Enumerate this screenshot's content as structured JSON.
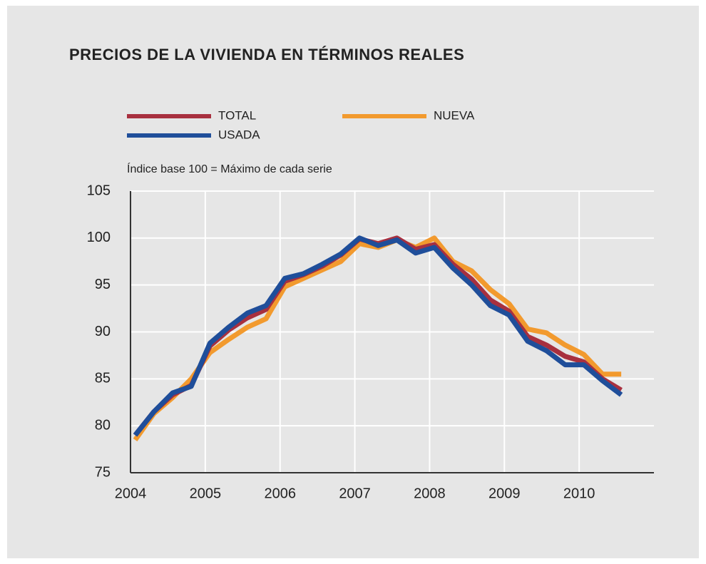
{
  "chart_data": {
    "type": "line",
    "title": "PRECIOS DE LA VIVIENDA EN TÉRMINOS REALES",
    "subtitle": "Índice base 100 = Máximo de cada serie",
    "x": [
      2004.0625,
      2004.3125,
      2004.5625,
      2004.8125,
      2005.0625,
      2005.3125,
      2005.5625,
      2005.8125,
      2006.0625,
      2006.3125,
      2006.5625,
      2006.8125,
      2007.0625,
      2007.3125,
      2007.5625,
      2007.8125,
      2008.0625,
      2008.3125,
      2008.5625,
      2008.8125,
      2009.0625,
      2009.3125,
      2009.5625,
      2009.8125,
      2010.0625,
      2010.3125,
      2010.5625
    ],
    "series": [
      {
        "name": "NUEVA",
        "color": "#f29a2e",
        "values": [
          78.5,
          81.3,
          83,
          85,
          87.8,
          89.2,
          90.5,
          91.4,
          94.8,
          95.7,
          96.6,
          97.5,
          99.4,
          99,
          99.8,
          99,
          100,
          97.5,
          96.5,
          94.5,
          93,
          90.3,
          89.9,
          88.6,
          87.6,
          85.5,
          85.5
        ]
      },
      {
        "name": "TOTAL",
        "color": "#a8303f",
        "values": [
          79,
          81.5,
          83.3,
          84.3,
          88.5,
          90.2,
          91.5,
          92.4,
          95.4,
          96.1,
          97,
          98.2,
          99.9,
          99.4,
          100,
          98.8,
          99.3,
          97.2,
          95.6,
          93.4,
          92.2,
          89.5,
          88.6,
          87.4,
          86.8,
          85,
          83.8
        ]
      },
      {
        "name": "USADA",
        "color": "#1f4e9a",
        "values": [
          79,
          81.5,
          83.5,
          84.2,
          88.8,
          90.5,
          92,
          92.8,
          95.7,
          96.2,
          97.2,
          98.3,
          100,
          99.2,
          99.8,
          98.4,
          99,
          96.8,
          95,
          92.8,
          91.8,
          89,
          88,
          86.5,
          86.5,
          84.8,
          83.3
        ]
      }
    ],
    "xlim": [
      2004,
      2011
    ],
    "xticks": [
      2004,
      2005,
      2006,
      2007,
      2008,
      2009,
      2010
    ],
    "ylim": [
      75,
      105
    ],
    "yticks": [
      75,
      80,
      85,
      90,
      95,
      100,
      105
    ],
    "grid": true
  }
}
